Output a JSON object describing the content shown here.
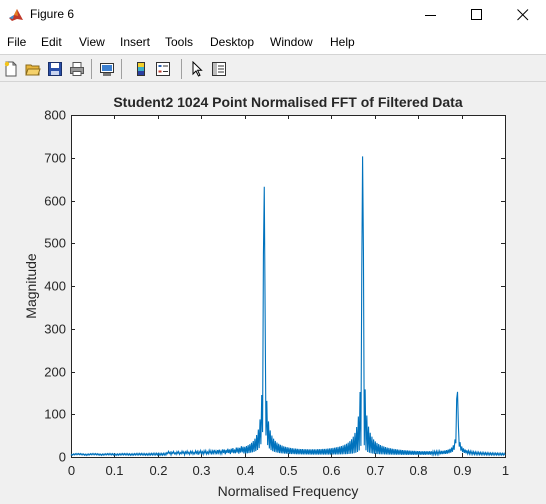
{
  "window": {
    "title": "Figure 6"
  },
  "menu": {
    "items": [
      {
        "label": "File"
      },
      {
        "label": "Edit"
      },
      {
        "label": "View"
      },
      {
        "label": "Insert"
      },
      {
        "label": "Tools"
      },
      {
        "label": "Desktop"
      },
      {
        "label": "Window"
      },
      {
        "label": "Help"
      }
    ]
  },
  "toolbar": {
    "tools": [
      {
        "name": "new-figure-icon"
      },
      {
        "name": "open-file-icon"
      },
      {
        "name": "save-icon"
      },
      {
        "name": "print-icon"
      },
      {
        "name": "link-plot-icon"
      },
      {
        "name": "colorbar-icon"
      },
      {
        "name": "legend-icon"
      },
      {
        "name": "edit-plot-arrow-icon"
      },
      {
        "name": "property-inspector-icon"
      }
    ]
  },
  "colors": {
    "line": "#0072bd",
    "axes_bg": "#ffffff",
    "figure_bg": "#f0f0f0"
  },
  "chart_data": {
    "type": "line",
    "title": "Student2 1024 Point Normalised FFT of Filtered Data",
    "xlabel": "Normalised Frequency",
    "ylabel": "Magnitude",
    "xlim": [
      0,
      1
    ],
    "ylim": [
      0,
      800
    ],
    "xticks": [
      "0",
      "0.1",
      "0.2",
      "0.3",
      "0.4",
      "0.5",
      "0.6",
      "0.7",
      "0.8",
      "0.9",
      "1"
    ],
    "yticks": [
      "0",
      "100",
      "200",
      "300",
      "400",
      "500",
      "600",
      "700",
      "800"
    ],
    "peaks": [
      {
        "x": 0.445,
        "y": 635
      },
      {
        "x": 0.672,
        "y": 700
      },
      {
        "x": 0.89,
        "y": 155
      }
    ],
    "grid": false,
    "legend": "none"
  }
}
